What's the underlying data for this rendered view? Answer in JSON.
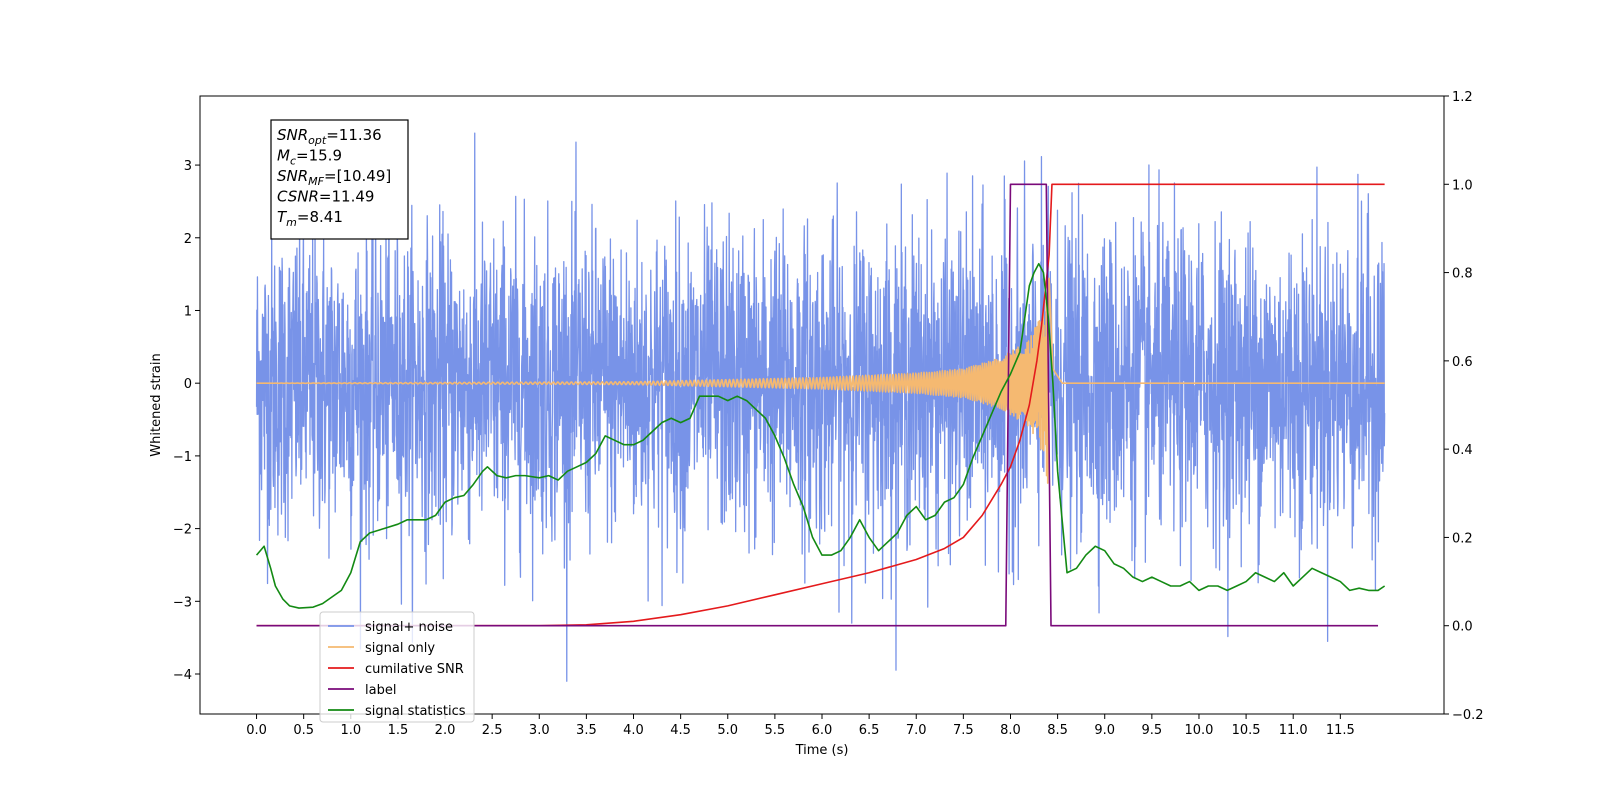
{
  "chart_data": {
    "type": "line",
    "title": "",
    "xlabel": "Time (s)",
    "ylabel": "Whitened strain",
    "xlim": [
      -0.6,
      12.6
    ],
    "ylim_left": [
      -4.55,
      3.95
    ],
    "ylim_right": [
      -0.2,
      1.2
    ],
    "x_ticks": [
      0.0,
      0.5,
      1.0,
      1.5,
      2.0,
      2.5,
      3.0,
      3.5,
      4.0,
      4.5,
      5.0,
      5.5,
      6.0,
      6.5,
      7.0,
      7.5,
      8.0,
      8.5,
      9.0,
      9.5,
      10.0,
      10.5,
      11.0,
      11.5
    ],
    "x_tick_labels": [
      "0.0",
      "0.5",
      "1.0",
      "1.5",
      "2.0",
      "2.5",
      "3.0",
      "3.5",
      "4.0",
      "4.5",
      "5.0",
      "5.5",
      "6.0",
      "6.5",
      "7.0",
      "7.5",
      "8.0",
      "8.5",
      "9.0",
      "9.5",
      "10.0",
      "10.5",
      "11.0",
      "11.5"
    ],
    "y_left_ticks": [
      -4,
      -3,
      -2,
      -1,
      0,
      1,
      2,
      3
    ],
    "y_left_tick_labels": [
      "−4",
      "−3",
      "−2",
      "−1",
      "0",
      "1",
      "2",
      "3"
    ],
    "y_right_ticks": [
      -0.2,
      0.0,
      0.2,
      0.4,
      0.6,
      0.8,
      1.0,
      1.2
    ],
    "y_right_tick_labels": [
      "−0.2",
      "0.0",
      "0.2",
      "0.4",
      "0.6",
      "0.8",
      "1.0",
      "1.2"
    ],
    "grid": false,
    "legend_position": "lower-left",
    "series": [
      {
        "name": "signal+ noise",
        "axis": "left",
        "color": "#7893e8",
        "kind": "noise",
        "x_range": [
          0.0,
          11.97
        ],
        "typical_amplitude": 1.5,
        "peak_range": [
          -4.1,
          3.6
        ]
      },
      {
        "name": "signal only",
        "axis": "left",
        "color": "#f5b971",
        "kind": "chirp",
        "x_range": [
          0.0,
          11.97
        ],
        "merger_time": 8.41,
        "envelope": [
          [
            0.0,
            0.0
          ],
          [
            4.0,
            0.02
          ],
          [
            5.0,
            0.05
          ],
          [
            6.0,
            0.08
          ],
          [
            7.0,
            0.14
          ],
          [
            7.5,
            0.2
          ],
          [
            7.9,
            0.35
          ],
          [
            8.2,
            0.6
          ],
          [
            8.35,
            1.0
          ],
          [
            8.41,
            1.5
          ],
          [
            8.45,
            0.2
          ],
          [
            8.55,
            0.0
          ],
          [
            11.97,
            0.0
          ]
        ]
      },
      {
        "name": "cumilative SNR",
        "axis": "right",
        "color": "#e41a1c",
        "x": [
          0.0,
          3.0,
          3.5,
          4.0,
          4.5,
          5.0,
          5.5,
          6.0,
          6.5,
          7.0,
          7.3,
          7.5,
          7.7,
          7.9,
          8.0,
          8.1,
          8.2,
          8.28,
          8.33,
          8.37,
          8.41,
          8.44,
          8.47,
          11.5,
          11.97
        ],
        "y": [
          0.0,
          0.0,
          0.002,
          0.01,
          0.025,
          0.045,
          0.07,
          0.095,
          0.12,
          0.15,
          0.175,
          0.2,
          0.25,
          0.32,
          0.36,
          0.42,
          0.5,
          0.6,
          0.68,
          0.76,
          0.84,
          1.0,
          1.0,
          1.0,
          1.0
        ]
      },
      {
        "name": "label",
        "axis": "right",
        "color": "#7a0a7a",
        "x": [
          0.0,
          7.95,
          8.0,
          8.38,
          8.43,
          11.9
        ],
        "y": [
          0.0,
          0.0,
          1.0,
          1.0,
          0.0,
          0.0
        ]
      },
      {
        "name": "signal statistics",
        "axis": "right",
        "color": "#138a13",
        "x": [
          0.0,
          0.08,
          0.15,
          0.2,
          0.28,
          0.35,
          0.45,
          0.6,
          0.7,
          0.8,
          0.9,
          1.0,
          1.1,
          1.2,
          1.35,
          1.5,
          1.6,
          1.7,
          1.8,
          1.9,
          2.0,
          2.1,
          2.2,
          2.3,
          2.4,
          2.45,
          2.55,
          2.65,
          2.75,
          2.85,
          3.0,
          3.1,
          3.2,
          3.3,
          3.4,
          3.5,
          3.6,
          3.7,
          3.8,
          3.9,
          4.0,
          4.1,
          4.2,
          4.3,
          4.4,
          4.5,
          4.6,
          4.7,
          4.8,
          4.9,
          5.0,
          5.1,
          5.2,
          5.3,
          5.4,
          5.5,
          5.6,
          5.7,
          5.8,
          5.9,
          6.0,
          6.1,
          6.2,
          6.3,
          6.4,
          6.5,
          6.6,
          6.7,
          6.8,
          6.9,
          7.0,
          7.1,
          7.2,
          7.3,
          7.4,
          7.5,
          7.6,
          7.7,
          7.8,
          7.9,
          8.0,
          8.1,
          8.2,
          8.25,
          8.3,
          8.35,
          8.4,
          8.45,
          8.5,
          8.6,
          8.7,
          8.8,
          8.9,
          9.0,
          9.1,
          9.2,
          9.3,
          9.4,
          9.5,
          9.6,
          9.7,
          9.8,
          9.9,
          10.0,
          10.1,
          10.2,
          10.3,
          10.4,
          10.5,
          10.6,
          10.7,
          10.8,
          10.9,
          11.0,
          11.1,
          11.2,
          11.3,
          11.4,
          11.5,
          11.6,
          11.7,
          11.8,
          11.9,
          11.97
        ],
        "y": [
          0.16,
          0.18,
          0.13,
          0.09,
          0.06,
          0.045,
          0.04,
          0.042,
          0.05,
          0.065,
          0.08,
          0.12,
          0.19,
          0.21,
          0.22,
          0.23,
          0.24,
          0.24,
          0.24,
          0.25,
          0.28,
          0.29,
          0.295,
          0.32,
          0.35,
          0.36,
          0.34,
          0.335,
          0.34,
          0.34,
          0.335,
          0.34,
          0.33,
          0.35,
          0.36,
          0.37,
          0.39,
          0.43,
          0.42,
          0.41,
          0.41,
          0.42,
          0.44,
          0.46,
          0.47,
          0.46,
          0.47,
          0.52,
          0.52,
          0.52,
          0.51,
          0.52,
          0.51,
          0.49,
          0.47,
          0.43,
          0.38,
          0.32,
          0.27,
          0.2,
          0.16,
          0.16,
          0.17,
          0.2,
          0.24,
          0.2,
          0.17,
          0.19,
          0.21,
          0.25,
          0.27,
          0.24,
          0.25,
          0.28,
          0.29,
          0.32,
          0.38,
          0.43,
          0.48,
          0.53,
          0.57,
          0.62,
          0.77,
          0.8,
          0.82,
          0.8,
          0.7,
          0.55,
          0.35,
          0.12,
          0.13,
          0.16,
          0.18,
          0.17,
          0.14,
          0.13,
          0.11,
          0.1,
          0.11,
          0.1,
          0.09,
          0.09,
          0.1,
          0.08,
          0.09,
          0.09,
          0.08,
          0.09,
          0.1,
          0.12,
          0.11,
          0.1,
          0.12,
          0.09,
          0.11,
          0.13,
          0.12,
          0.11,
          0.1,
          0.08,
          0.085,
          0.08,
          0.08,
          0.09
        ]
      }
    ],
    "legend": [
      {
        "label": "signal+ noise",
        "color": "#7893e8"
      },
      {
        "label": "signal only",
        "color": "#f5b971"
      },
      {
        "label": "cumilative SNR",
        "color": "#e41a1c"
      },
      {
        "label": "label",
        "color": "#7a0a7a"
      },
      {
        "label": "signal statistics",
        "color": "#138a13"
      }
    ],
    "annotation": {
      "lines": [
        {
          "base": "SNR",
          "sub": "opt",
          "value": "=11.36"
        },
        {
          "base": "M",
          "sub": "c",
          "value": "=15.9"
        },
        {
          "base": "SNR",
          "sub": "MF",
          "value": "=[10.49]"
        },
        {
          "base": "CSNR",
          "sub": "",
          "value": "=11.49"
        },
        {
          "base": "T",
          "sub": "m",
          "value": "=8.41"
        }
      ]
    }
  }
}
